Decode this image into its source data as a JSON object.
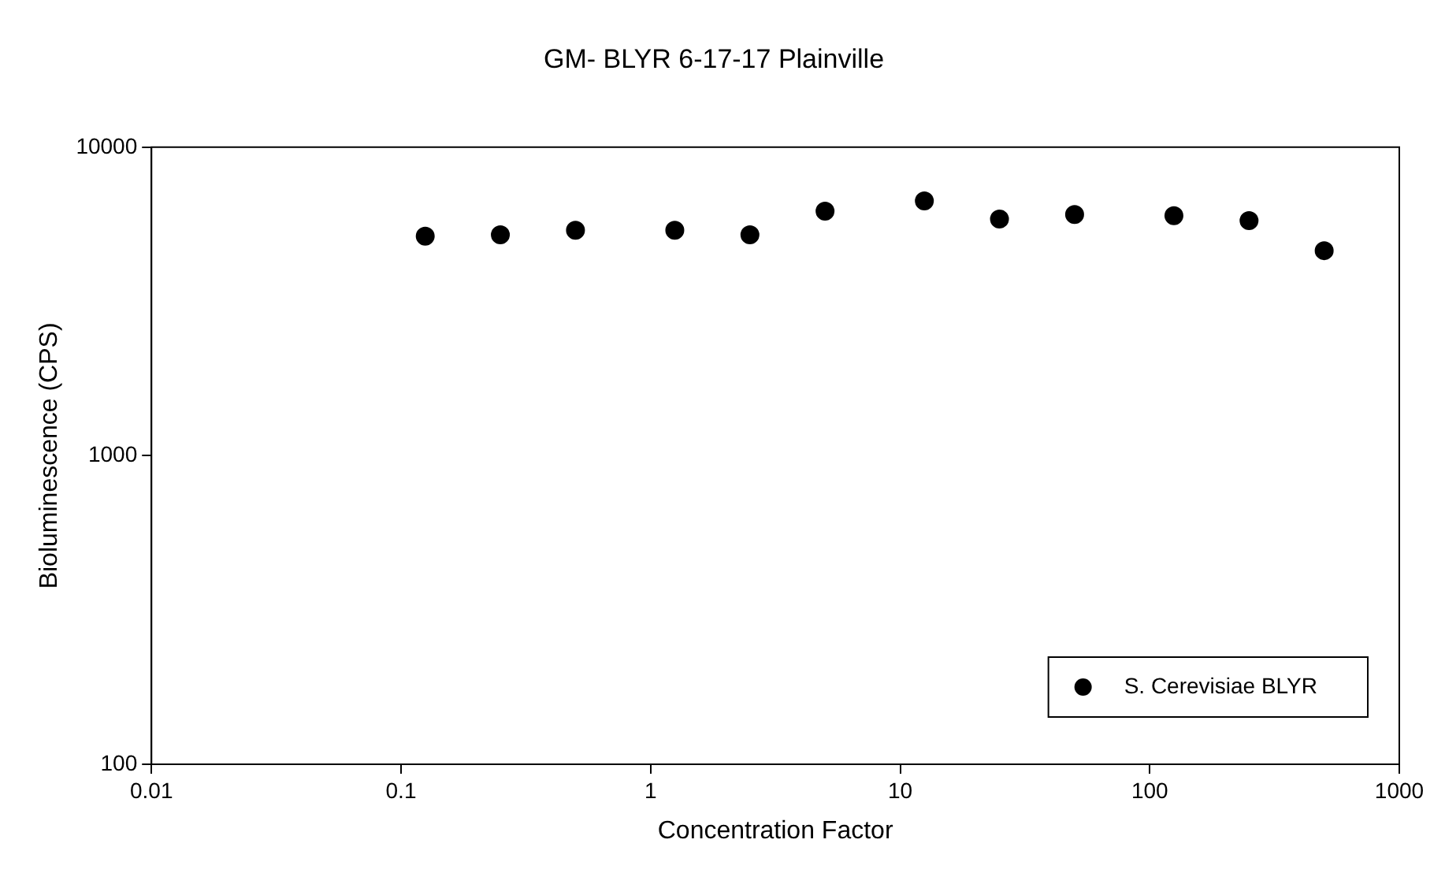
{
  "chart_data": {
    "type": "scatter",
    "title": "GM- BLYR 6-17-17 Plainville",
    "xlabel": "Concentration Factor",
    "ylabel": "Bioluminescence (CPS)",
    "log": "xy",
    "xlim": [
      0.01,
      1000
    ],
    "xticks": [
      0.01,
      0.1,
      1,
      10,
      100,
      1000
    ],
    "ylim": [
      100,
      10000
    ],
    "yticks": [
      100,
      1000,
      10000
    ],
    "grid": false,
    "legend": "bottom right",
    "marker": "circle",
    "x": [
      0.125,
      0.25,
      0.5,
      1.25,
      2.5,
      5,
      12.5,
      25,
      50,
      125,
      250,
      500
    ],
    "series": [
      {
        "name": "S. Cerevisiae BLYR",
        "color": "#000000",
        "values": [
          5150,
          5200,
          5380,
          5380,
          5200,
          6200,
          6700,
          5850,
          6050,
          6000,
          5780,
          4620
        ]
      }
    ]
  }
}
